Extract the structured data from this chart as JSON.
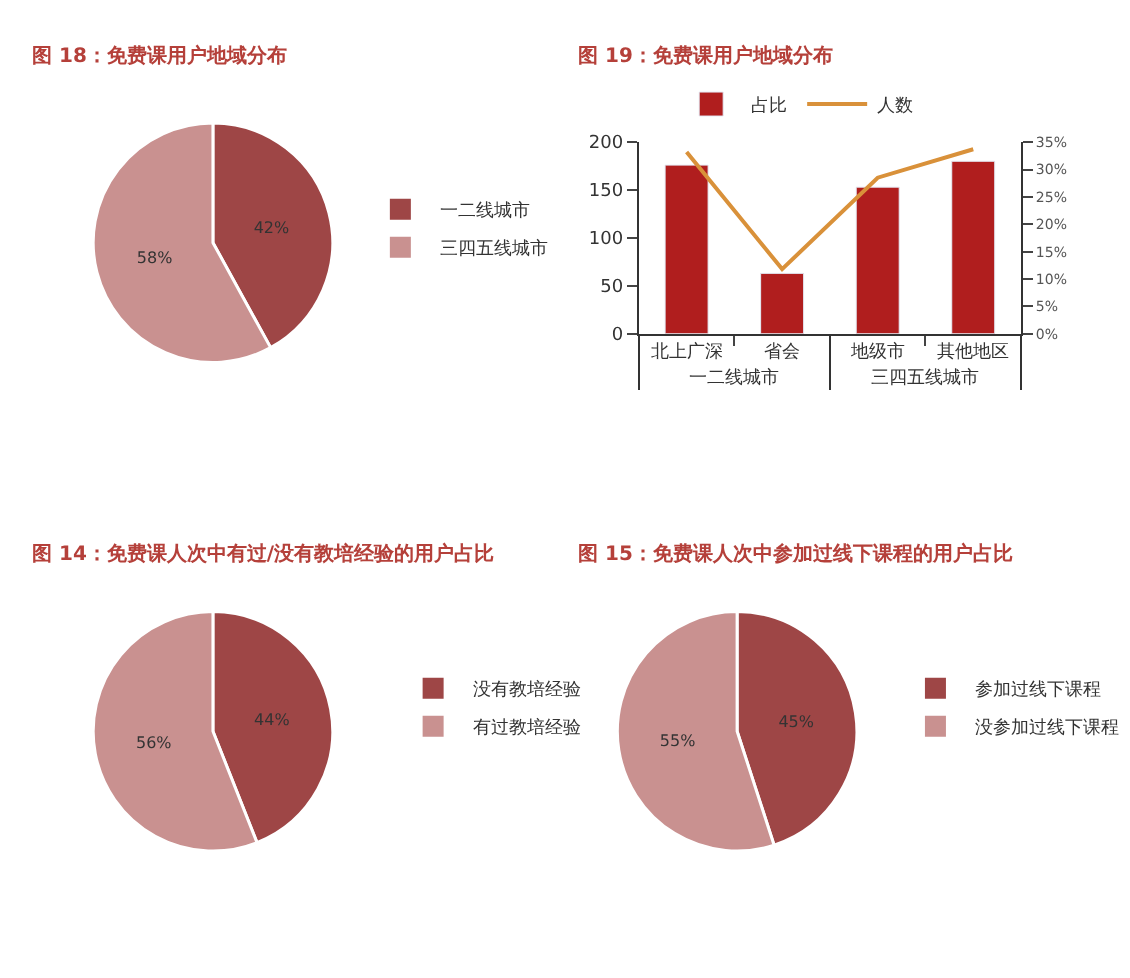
{
  "chart_data": [
    {
      "type": "pie",
      "title": "图 18：免费课用户地域分布",
      "categories": [
        "一二线城市",
        "三四五线城市"
      ],
      "values": [
        42,
        58
      ],
      "colors": [
        "#9e4646",
        "#c99190"
      ],
      "value_labels": [
        "42%",
        "58%"
      ],
      "legend": "right"
    },
    {
      "type": "bar",
      "title": "图 19：免费课用户地域分布",
      "categories": [
        "北上广深",
        "省会",
        "地级市",
        "其他地区"
      ],
      "annotations": [
        "一二线城市",
        "三四五线城市"
      ],
      "series": [
        {
          "name": "占比",
          "type": "bar",
          "color": "#b01e1e",
          "values": [
            176,
            63,
            153,
            180
          ]
        },
        {
          "name": "人数",
          "type": "line",
          "axis": "y2",
          "color": "#d9913a",
          "values": [
            33.2,
            11.8,
            28.5,
            33.7
          ]
        }
      ],
      "ylim": [
        0,
        200
      ],
      "yticks": [
        0,
        50,
        100,
        150,
        200
      ],
      "y2lim": [
        0,
        35
      ],
      "y2ticks": [
        {
          "value": 0,
          "label": "0%"
        },
        {
          "value": 5,
          "label": "5%"
        },
        {
          "value": 10,
          "label": "10%"
        },
        {
          "value": 15,
          "label": "15%"
        },
        {
          "value": 20,
          "label": "20%"
        },
        {
          "value": 25,
          "label": "25%"
        },
        {
          "value": 30,
          "label": "30%"
        },
        {
          "value": 35,
          "label": "35%"
        }
      ],
      "legend": "top"
    },
    {
      "type": "pie",
      "title": "图 14：免费课人次中有过/没有教培经验的用户占比",
      "categories": [
        "没有教培经验",
        "有过教培经验"
      ],
      "values": [
        44,
        56
      ],
      "colors": [
        "#9e4646",
        "#c99190"
      ],
      "value_labels": [
        "44%",
        "56%"
      ],
      "legend": "right"
    },
    {
      "type": "pie",
      "title": "图 15：免费课人次中参加过线下课程的用户占比",
      "categories": [
        "参加过线下课程",
        "没参加过线下课程"
      ],
      "values": [
        45,
        55
      ],
      "colors": [
        "#9e4646",
        "#c99190"
      ],
      "value_labels": [
        "45%",
        "55%"
      ],
      "legend": "right"
    }
  ]
}
